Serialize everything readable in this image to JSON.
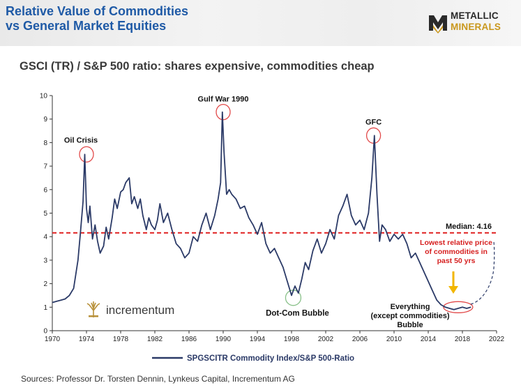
{
  "header": {
    "title_line1": "Relative Value of Commodities",
    "title_line2": "vs General Market Equities",
    "logo": {
      "line1": "METALLIC",
      "line2": "MINERALS",
      "icon": "mm-logo-icon"
    }
  },
  "subtitle": "GSCI (TR) / S&P 500 ratio: shares expensive, commodities cheap",
  "sources": "Sources: Professor Dr. Torsten Dennin, Lynkeus Capital, Incrementum AG",
  "watermark": {
    "text": "incrementum",
    "icon": "incrementum-tree-icon"
  },
  "colors": {
    "series": "#2b3a67",
    "median": "#e02020",
    "circle": "#e24a4a",
    "circle_green": "#88c088",
    "arrow": "#f2b600",
    "annotation_red": "#d62020"
  },
  "chart_data": {
    "type": "line",
    "ylim": [
      0,
      10
    ],
    "xlim": [
      1970,
      2022
    ],
    "x_ticks": [
      "1970",
      "1974",
      "1978",
      "1982",
      "1986",
      "1990",
      "1994",
      "1998",
      "2002",
      "2006",
      "2010",
      "2014",
      "2018",
      "2022"
    ],
    "y_ticks": [
      "0",
      "1",
      "2",
      "3",
      "4",
      "5",
      "6",
      "7",
      "8",
      "9",
      "10"
    ],
    "legend": "top-bottom-center",
    "series": [
      {
        "name": "SPGSCITR Commodity Index/S&P 500-Ratio",
        "x": [
          1970.0,
          1970.5,
          1971.0,
          1971.5,
          1972.0,
          1972.5,
          1973.0,
          1973.3,
          1973.6,
          1973.8,
          1974.0,
          1974.2,
          1974.4,
          1974.7,
          1975.0,
          1975.3,
          1975.6,
          1976.0,
          1976.3,
          1976.6,
          1977.0,
          1977.3,
          1977.6,
          1978.0,
          1978.3,
          1978.6,
          1979.0,
          1979.3,
          1979.6,
          1980.0,
          1980.3,
          1980.6,
          1981.0,
          1981.3,
          1981.6,
          1982.0,
          1982.3,
          1982.6,
          1983.0,
          1983.5,
          1984.0,
          1984.5,
          1985.0,
          1985.5,
          1986.0,
          1986.5,
          1987.0,
          1987.5,
          1988.0,
          1988.5,
          1989.0,
          1989.4,
          1989.7,
          1989.9,
          1990.1,
          1990.4,
          1990.7,
          1991.0,
          1991.5,
          1992.0,
          1992.5,
          1993.0,
          1993.5,
          1994.0,
          1994.5,
          1995.0,
          1995.5,
          1996.0,
          1996.5,
          1997.0,
          1997.5,
          1998.0,
          1998.4,
          1998.8,
          1999.2,
          1999.6,
          2000.0,
          2000.5,
          2001.0,
          2001.5,
          2002.0,
          2002.5,
          2003.0,
          2003.5,
          2004.0,
          2004.5,
          2005.0,
          2005.5,
          2006.0,
          2006.5,
          2007.0,
          2007.4,
          2007.7,
          2008.0,
          2008.3,
          2008.6,
          2009.0,
          2009.5,
          2010.0,
          2010.5,
          2011.0,
          2011.5,
          2012.0,
          2012.5,
          2013.0,
          2013.5,
          2014.0,
          2014.5,
          2015.0,
          2015.5,
          2016.0,
          2016.5,
          2017.0,
          2017.5,
          2018.0,
          2018.5,
          2019.0
        ],
        "values": [
          1.2,
          1.25,
          1.3,
          1.35,
          1.5,
          1.8,
          3.0,
          4.2,
          5.5,
          7.5,
          5.2,
          4.6,
          5.3,
          3.9,
          4.5,
          3.8,
          3.3,
          3.6,
          4.4,
          3.9,
          4.8,
          5.6,
          5.2,
          5.9,
          6.0,
          6.3,
          6.5,
          5.4,
          5.7,
          5.2,
          5.6,
          4.9,
          4.3,
          4.8,
          4.5,
          4.3,
          4.7,
          5.4,
          4.6,
          5.0,
          4.3,
          3.7,
          3.5,
          3.1,
          3.3,
          4.0,
          3.8,
          4.5,
          5.0,
          4.3,
          4.9,
          5.6,
          6.3,
          9.3,
          7.6,
          5.8,
          6.0,
          5.8,
          5.6,
          5.2,
          5.3,
          4.8,
          4.5,
          4.1,
          4.6,
          3.7,
          3.3,
          3.5,
          3.1,
          2.7,
          2.1,
          1.5,
          1.9,
          1.6,
          2.2,
          2.9,
          2.6,
          3.4,
          3.9,
          3.3,
          3.7,
          4.3,
          3.9,
          4.9,
          5.3,
          5.8,
          4.9,
          4.5,
          4.7,
          4.3,
          5.0,
          6.5,
          8.3,
          5.8,
          3.8,
          4.5,
          4.3,
          3.8,
          4.1,
          3.9,
          4.1,
          3.7,
          3.1,
          3.3,
          2.9,
          2.5,
          2.1,
          1.7,
          1.3,
          1.1,
          1.0,
          0.95,
          0.9,
          0.95,
          1.0,
          0.95,
          1.0
        ]
      }
    ],
    "median": {
      "label": "Median: 4.16",
      "value": 4.16
    },
    "annotations": [
      {
        "label": "Oil Crisis",
        "x": 1974.0,
        "y": 7.5
      },
      {
        "label": "Gulf War 1990",
        "x": 1990.0,
        "y": 9.3
      },
      {
        "label": "GFC",
        "x": 2007.6,
        "y": 8.3
      },
      {
        "label": "Dot-Com Bubble",
        "x": 1998.2,
        "y": 1.5
      },
      {
        "label": "Everything",
        "label2": "(except commodities)",
        "label3": "Bubble",
        "x": 2017.5,
        "y": 1.0
      },
      {
        "label": "Lowest relative price",
        "label2": "of commodities in",
        "label3": "past 50 yrs"
      }
    ]
  }
}
